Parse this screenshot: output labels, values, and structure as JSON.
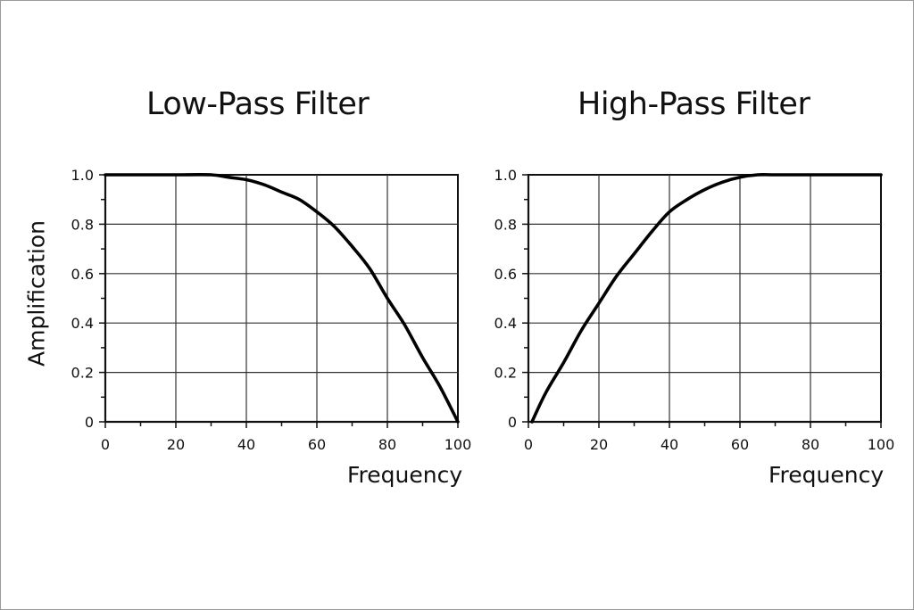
{
  "chart_data": [
    {
      "type": "line",
      "title": "Low-Pass Filter",
      "xlabel": "Frequency",
      "ylabel": "Amplification",
      "xlim": [
        0,
        100
      ],
      "ylim": [
        0,
        1.0
      ],
      "xticks": [
        "0",
        "20",
        "40",
        "60",
        "80",
        "100"
      ],
      "yticks": [
        "0",
        "0.2",
        "0.4",
        "0.6",
        "0.8",
        "1.0"
      ],
      "grid": true,
      "series": [
        {
          "x": [
            0,
            10,
            20,
            30,
            35,
            40,
            45,
            50,
            55,
            60,
            65,
            70,
            75,
            80,
            85,
            90,
            95,
            100
          ],
          "y": [
            1.0,
            1.0,
            1.0,
            1.0,
            0.99,
            0.98,
            0.96,
            0.93,
            0.9,
            0.85,
            0.79,
            0.71,
            0.62,
            0.5,
            0.39,
            0.26,
            0.14,
            0.0
          ]
        }
      ]
    },
    {
      "type": "line",
      "title": "High-Pass Filter",
      "xlabel": "Frequency",
      "ylabel": "",
      "xlim": [
        0,
        100
      ],
      "ylim": [
        0,
        1.0
      ],
      "xticks": [
        "0",
        "20",
        "40",
        "60",
        "80",
        "100"
      ],
      "yticks": [
        "0",
        "0.2",
        "0.4",
        "0.6",
        "0.8",
        "1.0"
      ],
      "grid": true,
      "series": [
        {
          "x": [
            1,
            5,
            10,
            15,
            20,
            25,
            30,
            35,
            40,
            45,
            50,
            55,
            60,
            65,
            70,
            80,
            90,
            100
          ],
          "y": [
            0.0,
            0.12,
            0.24,
            0.37,
            0.48,
            0.59,
            0.68,
            0.77,
            0.85,
            0.9,
            0.94,
            0.97,
            0.99,
            1.0,
            1.0,
            1.0,
            1.0,
            1.0
          ]
        }
      ]
    }
  ]
}
